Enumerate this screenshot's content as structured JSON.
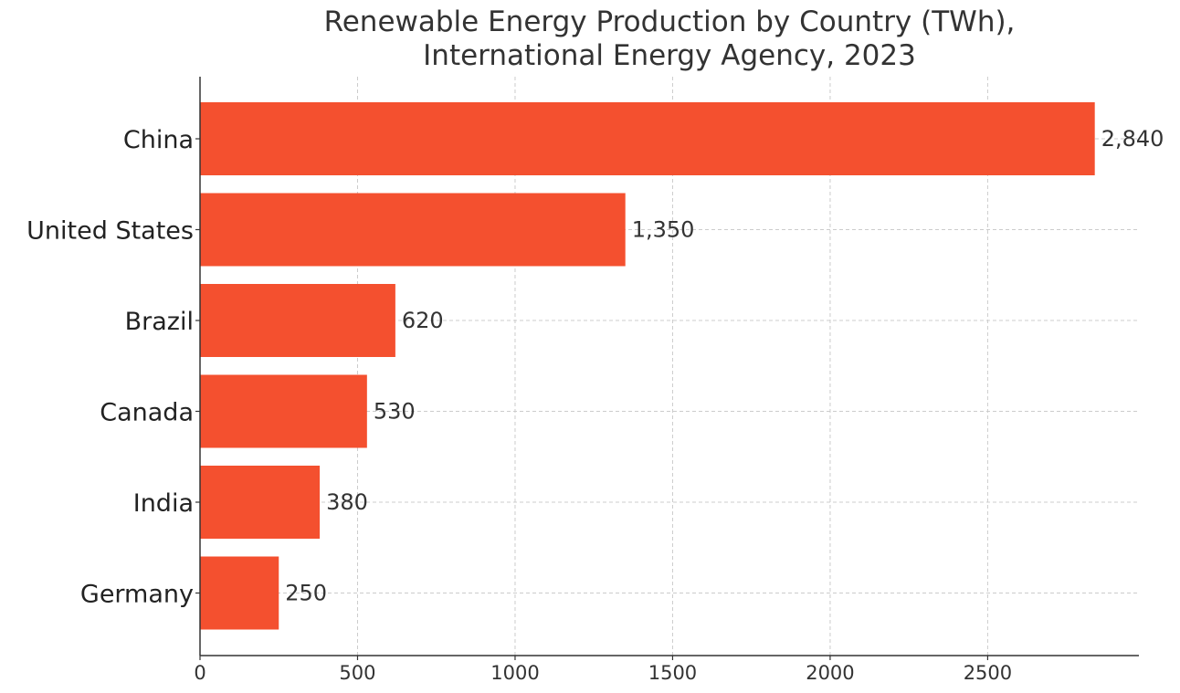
{
  "chart_data": {
    "type": "bar",
    "orientation": "horizontal",
    "title": "Renewable Energy Production by Country (TWh),\nInternational Energy Agency, 2023",
    "xlabel": "",
    "ylabel": "",
    "categories": [
      "China",
      "United States",
      "Brazil",
      "Canada",
      "India",
      "Germany"
    ],
    "values": [
      2840,
      1350,
      620,
      530,
      380,
      250
    ],
    "value_labels": [
      "2,840",
      "1,350",
      "620",
      "530",
      "380",
      "250"
    ],
    "xlim": [
      0,
      2980
    ],
    "xticks": [
      0,
      500,
      1000,
      1500,
      2000,
      2500
    ],
    "grid": true,
    "bar_color": "#f4502f"
  }
}
